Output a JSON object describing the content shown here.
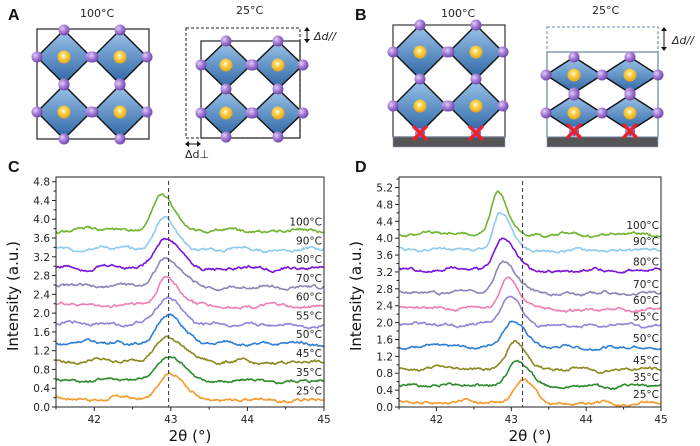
{
  "figure": {
    "panels": {
      "A": {
        "letter": "A",
        "left_caption": "100°C",
        "right_caption": "25°C",
        "delta_parallel": "Δd//",
        "delta_perp": "Δd⊥"
      },
      "B": {
        "letter": "B",
        "left_caption": "100°C",
        "right_caption": "25°C",
        "delta_parallel": "Δd//"
      }
    },
    "colors": {
      "octahedron_top": "#8ab8e6",
      "octahedron_bottom": "#2f6aa8",
      "anion": "#9b6fcf",
      "cation": "#f4c430",
      "substrate": "#555555",
      "pin_mark": "#e8202a"
    }
  },
  "chart_data": [
    {
      "panel": "C",
      "letter": "C",
      "type": "line",
      "title": "",
      "xlabel": "2θ (°)",
      "ylabel": "Intensity (a.u.)",
      "xlim": [
        41.5,
        45
      ],
      "ylim": [
        0,
        4.9
      ],
      "x_ticks": [
        "42",
        "43",
        "44",
        "45"
      ],
      "x_tick_values": [
        42,
        43,
        44,
        45
      ],
      "y_ticks": [
        "0.0",
        "0.4",
        "0.8",
        "1.2",
        "1.6",
        "2.0",
        "2.4",
        "2.8",
        "3.2",
        "3.6",
        "4.0",
        "4.4",
        "4.8"
      ],
      "y_tick_values": [
        0,
        0.4,
        0.8,
        1.2,
        1.6,
        2.0,
        2.4,
        2.8,
        3.2,
        3.6,
        4.0,
        4.4,
        4.8
      ],
      "reference_line_x": 42.97,
      "grid": false,
      "legend": "inline-right",
      "series": [
        {
          "name": "25°C",
          "color": "#f39a2b",
          "baseline": 0.18,
          "peak_x": 42.97,
          "peak_height": 0.58,
          "width": 0.14
        },
        {
          "name": "35°C",
          "color": "#2e8b2e",
          "baseline": 0.58,
          "peak_x": 42.95,
          "peak_height": 0.48,
          "width": 0.17
        },
        {
          "name": "45°C",
          "color": "#8a8a20",
          "baseline": 0.98,
          "peak_x": 42.95,
          "peak_height": 0.46,
          "width": 0.2
        },
        {
          "name": "50°C",
          "color": "#2f7fd6",
          "baseline": 1.38,
          "peak_x": 42.97,
          "peak_height": 0.6,
          "width": 0.14
        },
        {
          "name": "55°C",
          "color": "#8f86db",
          "baseline": 1.78,
          "peak_x": 42.95,
          "peak_height": 0.58,
          "width": 0.14
        },
        {
          "name": "60°C",
          "color": "#ee7fb5",
          "baseline": 2.18,
          "peak_x": 42.94,
          "peak_height": 0.6,
          "width": 0.13
        },
        {
          "name": "70°C",
          "color": "#8a86b8",
          "baseline": 2.58,
          "peak_x": 42.93,
          "peak_height": 0.6,
          "width": 0.15
        },
        {
          "name": "80°C",
          "color": "#7a14d8",
          "baseline": 2.98,
          "peak_x": 42.91,
          "peak_height": 0.62,
          "width": 0.15
        },
        {
          "name": "90°C",
          "color": "#8ecbee",
          "baseline": 3.38,
          "peak_x": 42.9,
          "peak_height": 0.64,
          "width": 0.13
        },
        {
          "name": "100°C",
          "color": "#6fb32e",
          "baseline": 3.78,
          "peak_x": 42.88,
          "peak_height": 0.7,
          "width": 0.13
        }
      ]
    },
    {
      "panel": "D",
      "letter": "D",
      "type": "line",
      "title": "",
      "xlabel": "2θ (°)",
      "ylabel": "Intensity (a.u.)",
      "xlim": [
        41.5,
        45
      ],
      "ylim": [
        0,
        5.45
      ],
      "x_ticks": [
        "42",
        "43",
        "44",
        "45"
      ],
      "x_tick_values": [
        42,
        43,
        44,
        45
      ],
      "y_ticks": [
        "0.0",
        "0.4",
        "0.8",
        "1.2",
        "1.6",
        "2.0",
        "2.4",
        "2.8",
        "3.2",
        "3.6",
        "4.0",
        "4.4",
        "4.8",
        "5.2"
      ],
      "y_tick_values": [
        0,
        0.4,
        0.8,
        1.2,
        1.6,
        2.0,
        2.4,
        2.8,
        3.2,
        3.6,
        4.0,
        4.4,
        4.8,
        5.2
      ],
      "reference_line_x": 43.15,
      "grid": false,
      "legend": "inline-right",
      "series": [
        {
          "name": "25°C",
          "color": "#f39a2b",
          "baseline": 0.12,
          "peak_x": 43.13,
          "peak_height": 0.52,
          "width": 0.12
        },
        {
          "name": "35°C",
          "color": "#2e8b2e",
          "baseline": 0.52,
          "peak_x": 43.07,
          "peak_height": 0.52,
          "width": 0.14
        },
        {
          "name": "45°C",
          "color": "#8a8a20",
          "baseline": 0.92,
          "peak_x": 43.05,
          "peak_height": 0.6,
          "width": 0.12
        },
        {
          "name": "50°C",
          "color": "#2f7fd6",
          "baseline": 1.44,
          "peak_x": 43.02,
          "peak_height": 0.62,
          "width": 0.13
        },
        {
          "name": "55°C",
          "color": "#8f86db",
          "baseline": 1.96,
          "peak_x": 42.97,
          "peak_height": 0.68,
          "width": 0.12
        },
        {
          "name": "60°C",
          "color": "#ee7fb5",
          "baseline": 2.34,
          "peak_x": 42.95,
          "peak_height": 0.72,
          "width": 0.12
        },
        {
          "name": "70°C",
          "color": "#8a86b8",
          "baseline": 2.72,
          "peak_x": 42.9,
          "peak_height": 0.72,
          "width": 0.13
        },
        {
          "name": "80°C",
          "color": "#7a14d8",
          "baseline": 3.26,
          "peak_x": 42.88,
          "peak_height": 0.74,
          "width": 0.12
        },
        {
          "name": "90°C",
          "color": "#8ecbee",
          "baseline": 3.74,
          "peak_x": 42.85,
          "peak_height": 0.86,
          "width": 0.11
        },
        {
          "name": "100°C",
          "color": "#6fb32e",
          "baseline": 4.12,
          "peak_x": 42.82,
          "peak_height": 0.92,
          "width": 0.1
        }
      ]
    }
  ]
}
